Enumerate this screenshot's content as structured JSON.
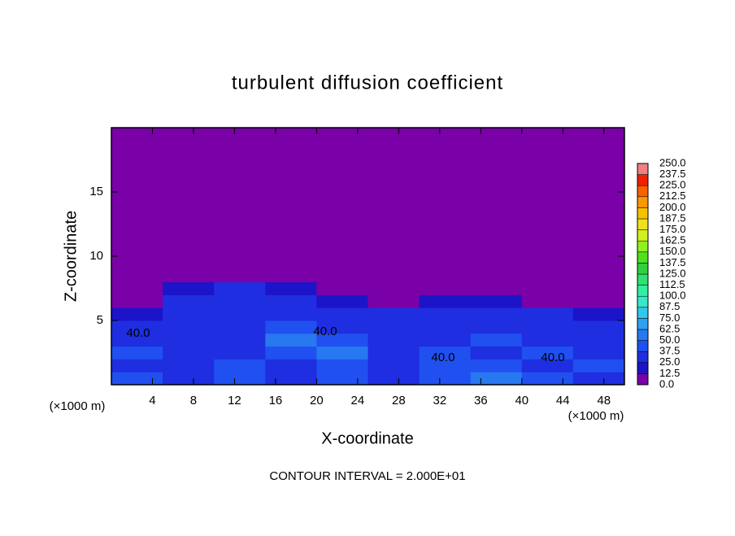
{
  "chart_data": {
    "type": "heatmap",
    "title": "turbulent diffusion coefficient",
    "x_label": "X-coordinate",
    "y_label": "Z-coordinate",
    "x_unit_left": "(×1000 m)",
    "x_unit_right": "(×1000 m)",
    "footer": "CONTOUR INTERVAL = 2.000E+01",
    "xlim": [
      0,
      50
    ],
    "ylim": [
      0,
      20
    ],
    "xticks": [
      4,
      8,
      12,
      16,
      20,
      24,
      28,
      32,
      36,
      40,
      44,
      48
    ],
    "yticks": [
      5,
      10,
      15
    ],
    "x_edges": [
      0,
      5,
      10,
      15,
      20,
      25,
      30,
      35,
      40,
      45,
      50
    ],
    "z_edges": [
      0,
      1,
      2,
      3,
      4,
      5,
      6,
      7,
      8,
      9,
      20
    ],
    "z": [
      [
        40,
        35,
        45,
        30,
        45,
        35,
        40,
        60,
        40,
        35
      ],
      [
        35,
        30,
        40,
        35,
        40,
        30,
        45,
        40,
        35,
        40
      ],
      [
        40,
        35,
        30,
        45,
        50,
        35,
        40,
        35,
        40,
        35
      ],
      [
        35,
        30,
        35,
        55,
        45,
        30,
        35,
        40,
        30,
        35
      ],
      [
        30,
        35,
        30,
        40,
        35,
        30,
        30,
        35,
        25,
        30
      ],
      [
        20,
        30,
        35,
        30,
        30,
        25,
        25,
        30,
        25,
        20
      ],
      [
        5,
        25,
        30,
        25,
        20,
        10,
        20,
        15,
        10,
        5
      ],
      [
        0,
        15,
        25,
        15,
        5,
        0,
        5,
        0,
        0,
        0
      ],
      [
        0,
        0,
        10,
        0,
        0,
        0,
        0,
        0,
        0,
        0
      ],
      [
        0,
        0,
        0,
        0,
        0,
        0,
        0,
        0,
        0,
        0
      ]
    ],
    "levels": [
      {
        "value": 0,
        "label": "0.0"
      },
      {
        "value": 12.5,
        "label": "12.5"
      },
      {
        "value": 25,
        "label": "25.0"
      },
      {
        "value": 37.5,
        "label": "37.5"
      },
      {
        "value": 50,
        "label": "50.0"
      },
      {
        "value": 62.5,
        "label": "62.5"
      },
      {
        "value": 75,
        "label": "75.0"
      },
      {
        "value": 87.5,
        "label": "87.5"
      },
      {
        "value": 100,
        "label": "100.0"
      },
      {
        "value": 112.5,
        "label": "112.5"
      },
      {
        "value": 125,
        "label": "125.0"
      },
      {
        "value": 137.5,
        "label": "137.5"
      },
      {
        "value": 150,
        "label": "150.0"
      },
      {
        "value": 162.5,
        "label": "162.5"
      },
      {
        "value": 175,
        "label": "175.0"
      },
      {
        "value": 187.5,
        "label": "187.5"
      },
      {
        "value": 200,
        "label": "200.0"
      },
      {
        "value": 212.5,
        "label": "212.5"
      },
      {
        "value": 225,
        "label": "225.0"
      },
      {
        "value": 237.5,
        "label": "237.5"
      },
      {
        "value": 250,
        "label": "250.0"
      }
    ],
    "colors": [
      "#7a00a8",
      "#1c14c8",
      "#1e2ee0",
      "#2050f0",
      "#2878f0",
      "#30a0f0",
      "#30c8ec",
      "#38e8c8",
      "#30f0a0",
      "#30e070",
      "#30d040",
      "#50e020",
      "#90f020",
      "#d0f020",
      "#f0e020",
      "#f8c000",
      "#f89800",
      "#f86000",
      "#f02000",
      "#f08080"
    ],
    "annotations": [
      "40.0",
      "40.0",
      "40.0",
      "40.0"
    ]
  }
}
